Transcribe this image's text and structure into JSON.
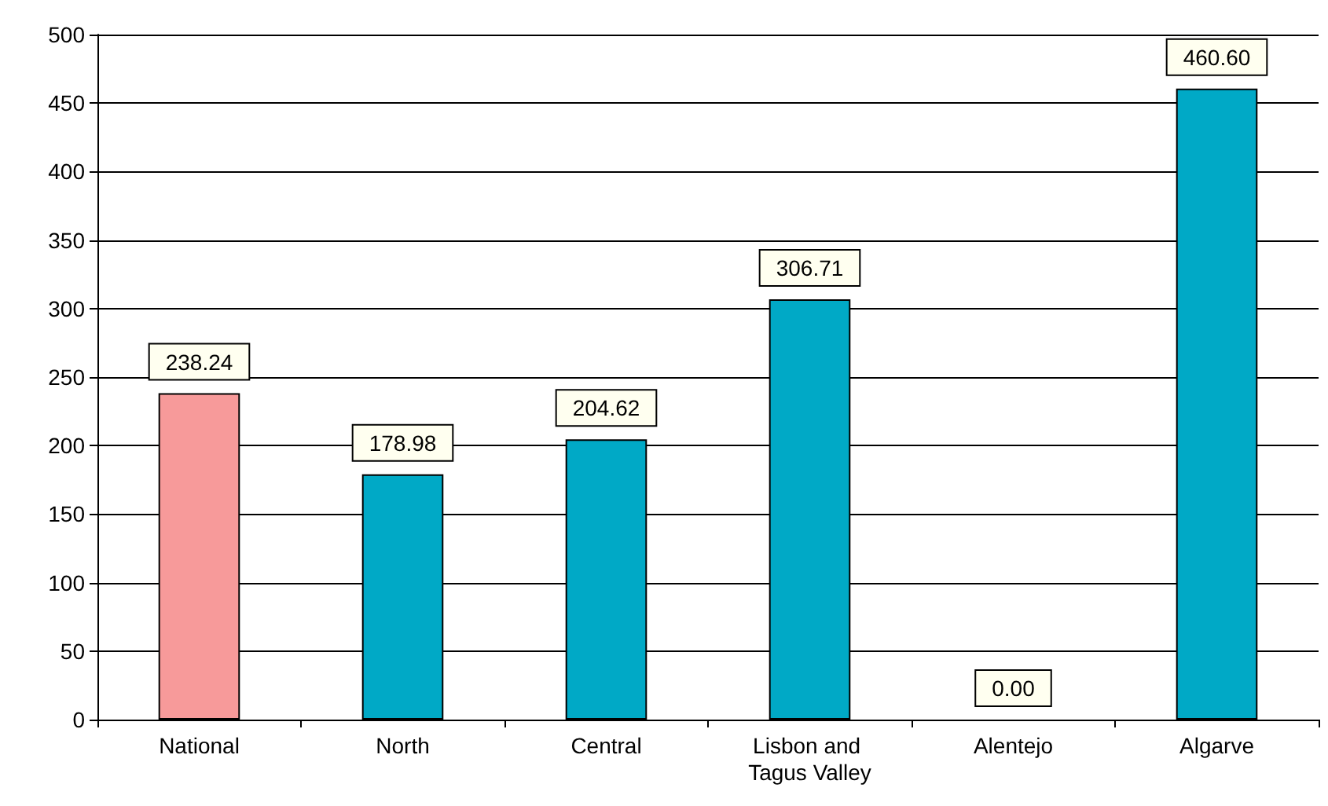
{
  "chart_data": {
    "type": "bar",
    "categories": [
      "National",
      "North",
      "Central",
      "Lisbon and Tagus Valley",
      "Alentejo",
      "Algarve"
    ],
    "values": [
      238.24,
      178.98,
      204.62,
      306.71,
      0.0,
      460.6
    ],
    "colors": [
      "#f79a9a",
      "#00a9c6",
      "#00a9c6",
      "#00a9c6",
      "#00a9c6",
      "#00a9c6"
    ],
    "ylim": [
      0,
      500
    ],
    "yticks": [
      0,
      50,
      100,
      150,
      200,
      250,
      300,
      350,
      400,
      450,
      500
    ],
    "value_labels": [
      "238.24",
      "178.98",
      "204.62",
      "306.71",
      "0.00",
      "460.60"
    ],
    "grid": "y"
  }
}
